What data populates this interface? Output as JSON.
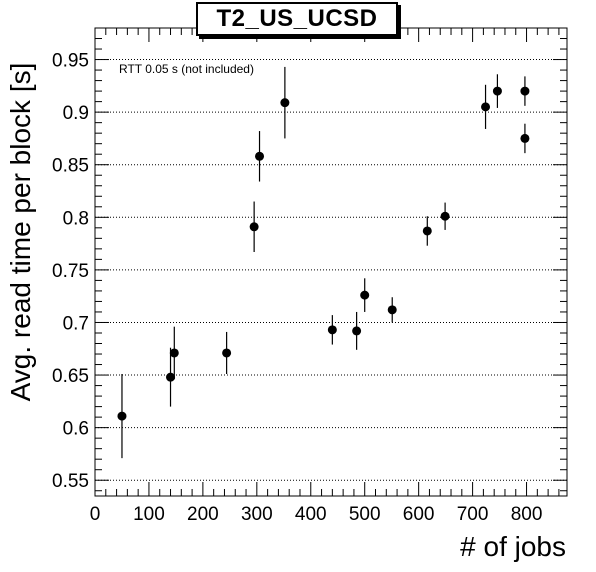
{
  "chart_data": {
    "type": "scatter",
    "title": "T2_US_UCSD",
    "xlabel": "# of jobs",
    "ylabel": "Avg. read time per block [s]",
    "annotation": "RTT 0.05 s (not included)",
    "xlim": [
      0,
      875
    ],
    "ylim": [
      0.535,
      0.98
    ],
    "x_ticks": [
      0,
      100,
      200,
      300,
      400,
      500,
      600,
      700,
      800
    ],
    "y_ticks": [
      0.55,
      0.6,
      0.65,
      0.7,
      0.75,
      0.8,
      0.85,
      0.9,
      0.95
    ],
    "x_tick_labels": [
      "0",
      "100",
      "200",
      "300",
      "400",
      "500",
      "600",
      "700",
      "800"
    ],
    "y_tick_labels": [
      "0.55",
      "0.6",
      "0.65",
      "0.7",
      "0.75",
      "0.8",
      "0.85",
      "0.9",
      "0.95"
    ],
    "grid": "horizontal dotted",
    "marker_color": "#000000",
    "points": [
      {
        "x": 50,
        "y": 0.611,
        "err": 0.04
      },
      {
        "x": 140,
        "y": 0.648,
        "err": 0.028
      },
      {
        "x": 147,
        "y": 0.671,
        "err": 0.025
      },
      {
        "x": 244,
        "y": 0.671,
        "err": 0.02
      },
      {
        "x": 295,
        "y": 0.791,
        "err": 0.024
      },
      {
        "x": 305,
        "y": 0.858,
        "err": 0.024
      },
      {
        "x": 352,
        "y": 0.909,
        "err": 0.034
      },
      {
        "x": 440,
        "y": 0.693,
        "err": 0.014
      },
      {
        "x": 485,
        "y": 0.692,
        "err": 0.018
      },
      {
        "x": 500,
        "y": 0.726,
        "err": 0.016
      },
      {
        "x": 551,
        "y": 0.712,
        "err": 0.012
      },
      {
        "x": 616,
        "y": 0.787,
        "err": 0.014
      },
      {
        "x": 649,
        "y": 0.801,
        "err": 0.013
      },
      {
        "x": 724,
        "y": 0.905,
        "err": 0.021
      },
      {
        "x": 746,
        "y": 0.92,
        "err": 0.016
      },
      {
        "x": 797,
        "y": 0.875,
        "err": 0.014
      },
      {
        "x": 797,
        "y": 0.92,
        "err": 0.014
      }
    ]
  }
}
